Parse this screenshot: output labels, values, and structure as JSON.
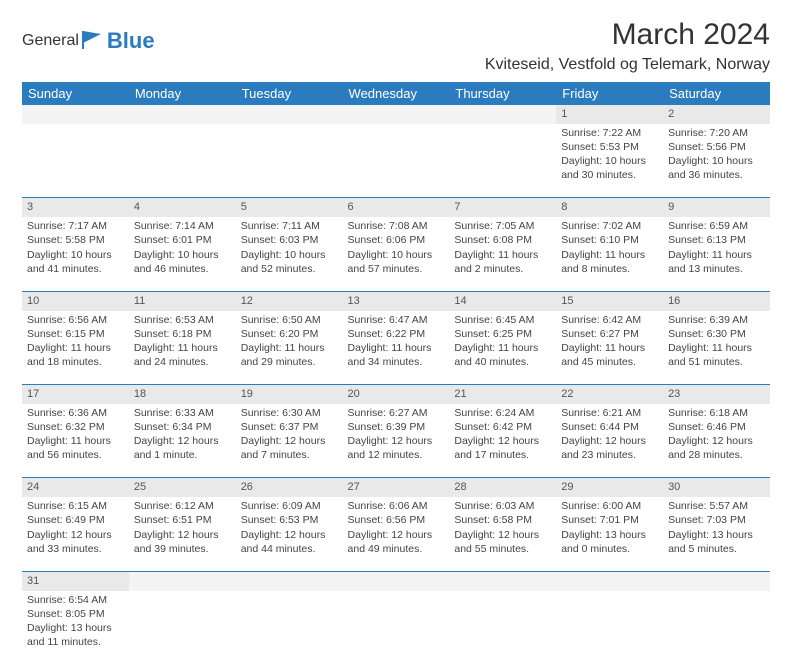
{
  "logo": {
    "text1": "General",
    "text2": "Blue"
  },
  "title": "March 2024",
  "location": "Kviteseid, Vestfold og Telemark, Norway",
  "colors": {
    "header_bg": "#2b7bbf",
    "header_fg": "#ffffff",
    "daynum_bg": "#e9e9e9",
    "rule": "#2b7bbf"
  },
  "weekdays": [
    "Sunday",
    "Monday",
    "Tuesday",
    "Wednesday",
    "Thursday",
    "Friday",
    "Saturday"
  ],
  "weeks": [
    [
      null,
      null,
      null,
      null,
      null,
      {
        "n": "1",
        "sr": "Sunrise: 7:22 AM",
        "ss": "Sunset: 5:53 PM",
        "dl": "Daylight: 10 hours and 30 minutes."
      },
      {
        "n": "2",
        "sr": "Sunrise: 7:20 AM",
        "ss": "Sunset: 5:56 PM",
        "dl": "Daylight: 10 hours and 36 minutes."
      }
    ],
    [
      {
        "n": "3",
        "sr": "Sunrise: 7:17 AM",
        "ss": "Sunset: 5:58 PM",
        "dl": "Daylight: 10 hours and 41 minutes."
      },
      {
        "n": "4",
        "sr": "Sunrise: 7:14 AM",
        "ss": "Sunset: 6:01 PM",
        "dl": "Daylight: 10 hours and 46 minutes."
      },
      {
        "n": "5",
        "sr": "Sunrise: 7:11 AM",
        "ss": "Sunset: 6:03 PM",
        "dl": "Daylight: 10 hours and 52 minutes."
      },
      {
        "n": "6",
        "sr": "Sunrise: 7:08 AM",
        "ss": "Sunset: 6:06 PM",
        "dl": "Daylight: 10 hours and 57 minutes."
      },
      {
        "n": "7",
        "sr": "Sunrise: 7:05 AM",
        "ss": "Sunset: 6:08 PM",
        "dl": "Daylight: 11 hours and 2 minutes."
      },
      {
        "n": "8",
        "sr": "Sunrise: 7:02 AM",
        "ss": "Sunset: 6:10 PM",
        "dl": "Daylight: 11 hours and 8 minutes."
      },
      {
        "n": "9",
        "sr": "Sunrise: 6:59 AM",
        "ss": "Sunset: 6:13 PM",
        "dl": "Daylight: 11 hours and 13 minutes."
      }
    ],
    [
      {
        "n": "10",
        "sr": "Sunrise: 6:56 AM",
        "ss": "Sunset: 6:15 PM",
        "dl": "Daylight: 11 hours and 18 minutes."
      },
      {
        "n": "11",
        "sr": "Sunrise: 6:53 AM",
        "ss": "Sunset: 6:18 PM",
        "dl": "Daylight: 11 hours and 24 minutes."
      },
      {
        "n": "12",
        "sr": "Sunrise: 6:50 AM",
        "ss": "Sunset: 6:20 PM",
        "dl": "Daylight: 11 hours and 29 minutes."
      },
      {
        "n": "13",
        "sr": "Sunrise: 6:47 AM",
        "ss": "Sunset: 6:22 PM",
        "dl": "Daylight: 11 hours and 34 minutes."
      },
      {
        "n": "14",
        "sr": "Sunrise: 6:45 AM",
        "ss": "Sunset: 6:25 PM",
        "dl": "Daylight: 11 hours and 40 minutes."
      },
      {
        "n": "15",
        "sr": "Sunrise: 6:42 AM",
        "ss": "Sunset: 6:27 PM",
        "dl": "Daylight: 11 hours and 45 minutes."
      },
      {
        "n": "16",
        "sr": "Sunrise: 6:39 AM",
        "ss": "Sunset: 6:30 PM",
        "dl": "Daylight: 11 hours and 51 minutes."
      }
    ],
    [
      {
        "n": "17",
        "sr": "Sunrise: 6:36 AM",
        "ss": "Sunset: 6:32 PM",
        "dl": "Daylight: 11 hours and 56 minutes."
      },
      {
        "n": "18",
        "sr": "Sunrise: 6:33 AM",
        "ss": "Sunset: 6:34 PM",
        "dl": "Daylight: 12 hours and 1 minute."
      },
      {
        "n": "19",
        "sr": "Sunrise: 6:30 AM",
        "ss": "Sunset: 6:37 PM",
        "dl": "Daylight: 12 hours and 7 minutes."
      },
      {
        "n": "20",
        "sr": "Sunrise: 6:27 AM",
        "ss": "Sunset: 6:39 PM",
        "dl": "Daylight: 12 hours and 12 minutes."
      },
      {
        "n": "21",
        "sr": "Sunrise: 6:24 AM",
        "ss": "Sunset: 6:42 PM",
        "dl": "Daylight: 12 hours and 17 minutes."
      },
      {
        "n": "22",
        "sr": "Sunrise: 6:21 AM",
        "ss": "Sunset: 6:44 PM",
        "dl": "Daylight: 12 hours and 23 minutes."
      },
      {
        "n": "23",
        "sr": "Sunrise: 6:18 AM",
        "ss": "Sunset: 6:46 PM",
        "dl": "Daylight: 12 hours and 28 minutes."
      }
    ],
    [
      {
        "n": "24",
        "sr": "Sunrise: 6:15 AM",
        "ss": "Sunset: 6:49 PM",
        "dl": "Daylight: 12 hours and 33 minutes."
      },
      {
        "n": "25",
        "sr": "Sunrise: 6:12 AM",
        "ss": "Sunset: 6:51 PM",
        "dl": "Daylight: 12 hours and 39 minutes."
      },
      {
        "n": "26",
        "sr": "Sunrise: 6:09 AM",
        "ss": "Sunset: 6:53 PM",
        "dl": "Daylight: 12 hours and 44 minutes."
      },
      {
        "n": "27",
        "sr": "Sunrise: 6:06 AM",
        "ss": "Sunset: 6:56 PM",
        "dl": "Daylight: 12 hours and 49 minutes."
      },
      {
        "n": "28",
        "sr": "Sunrise: 6:03 AM",
        "ss": "Sunset: 6:58 PM",
        "dl": "Daylight: 12 hours and 55 minutes."
      },
      {
        "n": "29",
        "sr": "Sunrise: 6:00 AM",
        "ss": "Sunset: 7:01 PM",
        "dl": "Daylight: 13 hours and 0 minutes."
      },
      {
        "n": "30",
        "sr": "Sunrise: 5:57 AM",
        "ss": "Sunset: 7:03 PM",
        "dl": "Daylight: 13 hours and 5 minutes."
      }
    ],
    [
      {
        "n": "31",
        "sr": "Sunrise: 6:54 AM",
        "ss": "Sunset: 8:05 PM",
        "dl": "Daylight: 13 hours and 11 minutes."
      },
      null,
      null,
      null,
      null,
      null,
      null
    ]
  ]
}
